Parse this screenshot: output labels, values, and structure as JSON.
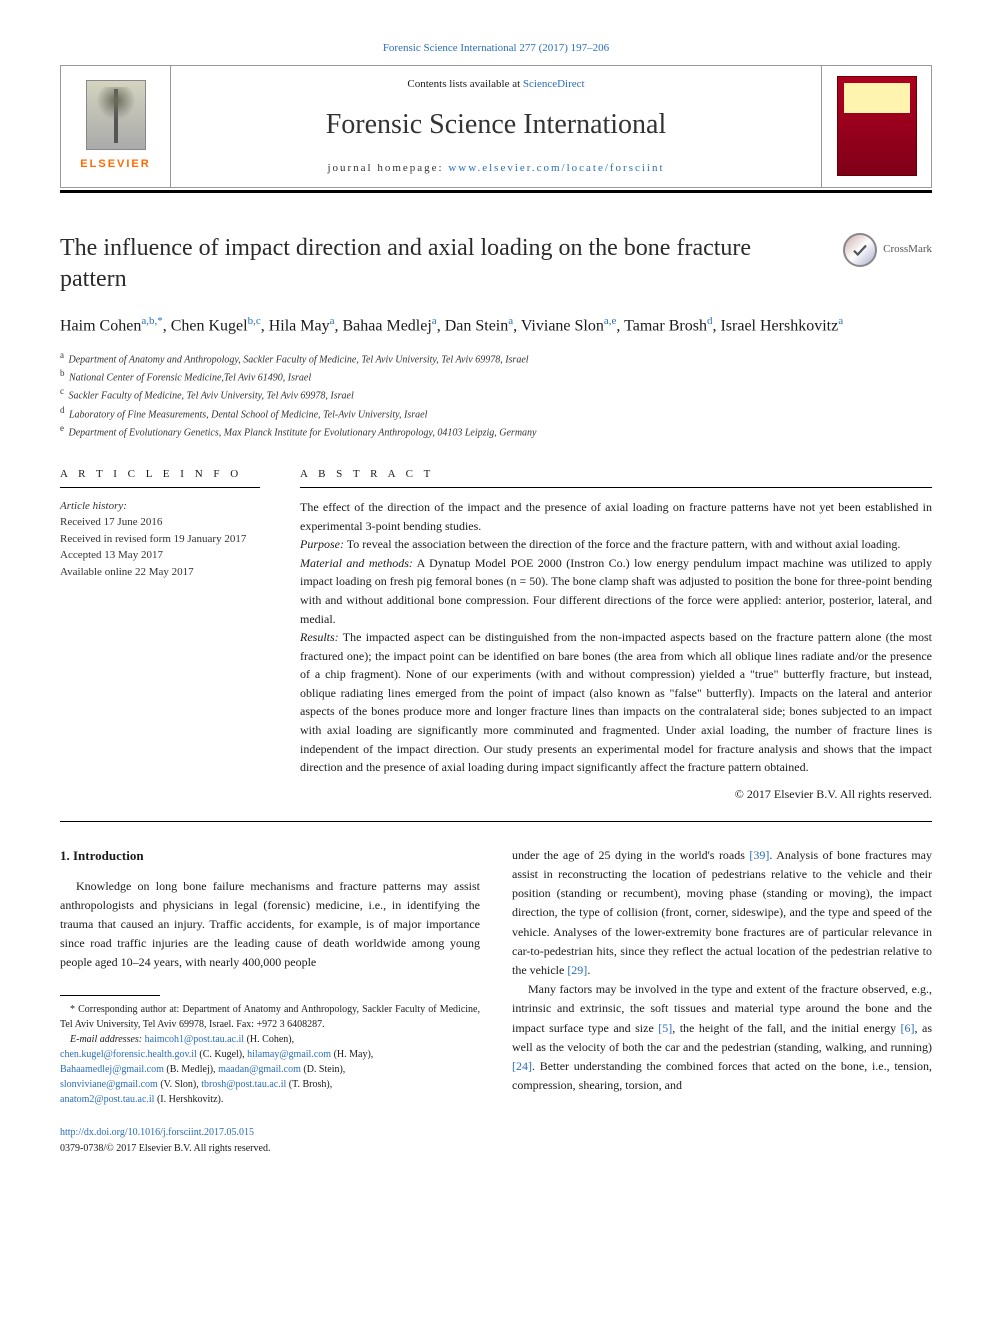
{
  "top_citation": "Forensic Science International 277 (2017) 197–206",
  "header": {
    "contents_prefix": "Contents lists available at ",
    "contents_link": "ScienceDirect",
    "journal": "Forensic Science International",
    "homepage_prefix": "journal homepage: ",
    "homepage_url": "www.elsevier.com/locate/forsciint",
    "publisher": "ELSEVIER"
  },
  "crossmark": "CrossMark",
  "title": "The influence of impact direction and axial loading on the bone fracture pattern",
  "authors_html": "Haim Cohen<sup>a,b,*</sup>, Chen Kugel<sup>b,c</sup>, Hila May<sup>a</sup>, Bahaa Medlej<sup>a</sup>, Dan Stein<sup>a</sup>, Viviane Slon<sup>a,e</sup>, Tamar Brosh<sup>d</sup>, Israel Hershkovitz<sup>a</sup>",
  "affiliations": [
    {
      "key": "a",
      "text": "Department of Anatomy and Anthropology, Sackler Faculty of Medicine, Tel Aviv University, Tel Aviv 69978, Israel"
    },
    {
      "key": "b",
      "text": "National Center of Forensic Medicine,Tel Aviv 61490, Israel"
    },
    {
      "key": "c",
      "text": "Sackler Faculty of Medicine, Tel Aviv University, Tel Aviv 69978, Israel"
    },
    {
      "key": "d",
      "text": "Laboratory of Fine Measurements, Dental School of Medicine, Tel-Aviv University, Israel"
    },
    {
      "key": "e",
      "text": "Department of Evolutionary Genetics, Max Planck Institute for Evolutionary Anthropology, 04103 Leipzig, Germany"
    }
  ],
  "article_info": {
    "heading": "A R T I C L E  I N F O",
    "history_label": "Article history:",
    "lines": [
      "Received 17 June 2016",
      "Received in revised form 19 January 2017",
      "Accepted 13 May 2017",
      "Available online 22 May 2017"
    ]
  },
  "abstract": {
    "heading": "A B S T R A C T",
    "intro": "The effect of the direction of the impact and the presence of axial loading on fracture patterns have not yet been established in experimental 3-point bending studies.",
    "purpose_label": "Purpose:",
    "purpose": " To reveal the association between the direction of the force and the fracture pattern, with and without axial loading.",
    "methods_label": "Material and methods:",
    "methods": " A Dynatup Model POE 2000 (Instron Co.) low energy pendulum impact machine was utilized to apply impact loading on fresh pig femoral bones (n = 50). The bone clamp shaft was adjusted to position the bone for three-point bending with and without additional bone compression. Four different directions of the force were applied: anterior, posterior, lateral, and medial.",
    "results_label": "Results:",
    "results": " The impacted aspect can be distinguished from the non-impacted aspects based on the fracture pattern alone (the most fractured one); the impact point can be identified on bare bones (the area from which all oblique lines radiate and/or the presence of a chip fragment). None of our experiments (with and without compression) yielded a \"true\" butterfly fracture, but instead, oblique radiating lines emerged from the point of impact (also known as \"false\" butterfly). Impacts on the lateral and anterior aspects of the bones produce more and longer fracture lines than impacts on the contralateral side; bones subjected to an impact with axial loading are significantly more comminuted and fragmented. Under axial loading, the number of fracture lines is independent of the impact direction. Our study presents an experimental model for fracture analysis and shows that the impact direction and the presence of axial loading during impact significantly affect the fracture pattern obtained.",
    "copyright": "© 2017 Elsevier B.V. All rights reserved."
  },
  "intro": {
    "heading": "1. Introduction",
    "left": "Knowledge on long bone failure mechanisms and fracture patterns may assist anthropologists and physicians in legal (forensic) medicine, i.e., in identifying the trauma that caused an injury. Traffic accidents, for example, is of major importance since road traffic injuries are the leading cause of death worldwide among young people aged 10–24 years, with nearly 400,000 people",
    "right_p1_a": "under the age of 25 dying in the world's roads ",
    "right_ref1": "[39]",
    "right_p1_b": ". Analysis of bone fractures may assist in reconstructing the location of pedestrians relative to the vehicle and their position (standing or recumbent), moving phase (standing or moving), the impact direction, the type of collision (front, corner, sideswipe), and the type and speed of the vehicle. Analyses of the lower-extremity bone fractures are of particular relevance in car-to-pedestrian hits, since they reflect the actual location of the pedestrian relative to the vehicle ",
    "right_ref2": "[29]",
    "right_p1_c": ".",
    "right_p2_a": "Many factors may be involved in the type and extent of the fracture observed, e.g., intrinsic and extrinsic, the soft tissues and material type around the bone and the impact surface type and size ",
    "right_ref3": "[5]",
    "right_p2_b": ", the height of the fall, and the initial energy ",
    "right_ref4": "[6]",
    "right_p2_c": ", as well as the velocity of both the car and the pedestrian (standing, walking, and running) ",
    "right_ref5": "[24]",
    "right_p2_d": ". Better understanding the combined forces that acted on the bone, i.e., tension, compression, shearing, torsion, and"
  },
  "footnotes": {
    "corr": "* Corresponding author at: Department of Anatomy and Anthropology, Sackler Faculty of Medicine, Tel Aviv University, Tel Aviv 69978, Israel. Fax: +972 3 6408287.",
    "emails_label": "E-mail addresses: ",
    "emails": [
      {
        "addr": "haimcoh1@post.tau.ac.il",
        "who": " (H. Cohen),"
      },
      {
        "addr": "chen.kugel@forensic.health.gov.il",
        "who": " (C. Kugel), "
      },
      {
        "addr": "hilamay@gmail.com",
        "who": " (H. May),"
      },
      {
        "addr": "Bahaamedlej@gmail.com",
        "who": " (B. Medlej), "
      },
      {
        "addr": "maadan@gmail.com",
        "who": " (D. Stein),"
      },
      {
        "addr": "slonviviane@gmail.com",
        "who": " (V. Slon), "
      },
      {
        "addr": "tbrosh@post.tau.ac.il",
        "who": " (T. Brosh),"
      },
      {
        "addr": "anatom2@post.tau.ac.il",
        "who": " (I. Hershkovitz)."
      }
    ]
  },
  "doi": {
    "url": "http://dx.doi.org/10.1016/j.forsciint.2017.05.015",
    "issn": "0379-0738/© 2017 Elsevier B.V. All rights reserved."
  },
  "colors": {
    "link": "#2a6ebb",
    "elsevier_orange": "#ff6a00"
  }
}
